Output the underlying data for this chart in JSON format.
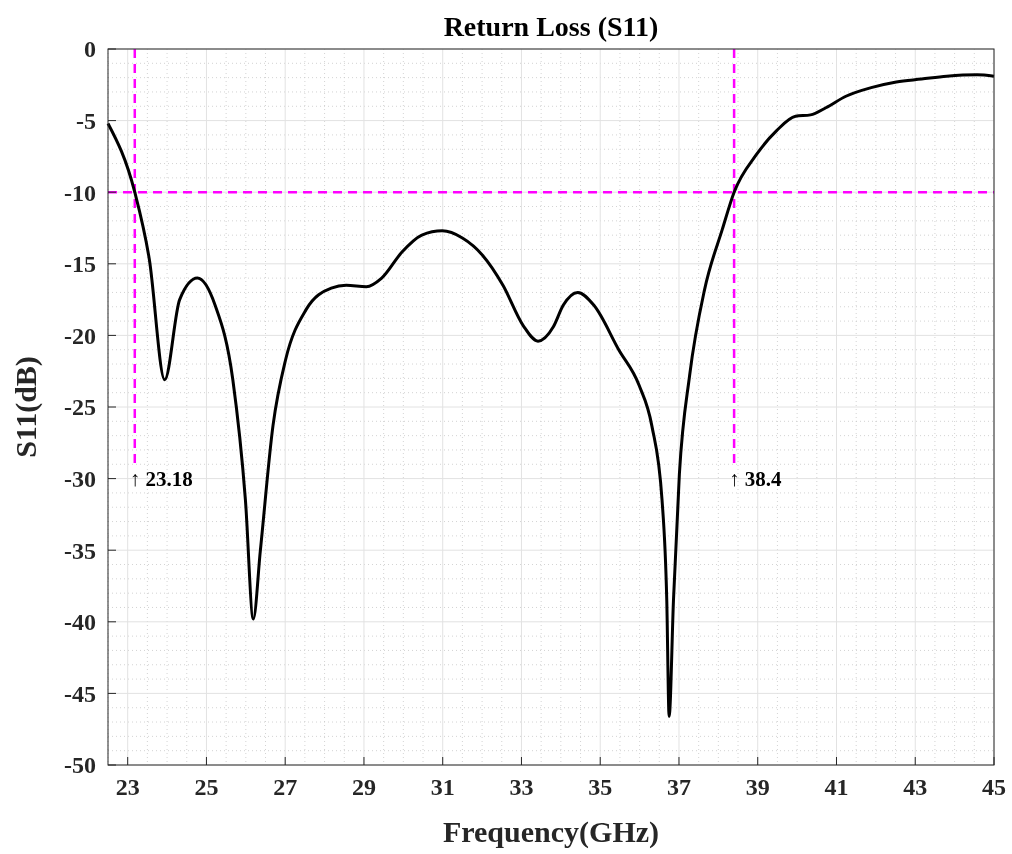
{
  "chart_data": {
    "type": "line",
    "title": "Return Loss (S11)",
    "xlabel": "Frequency(GHz)",
    "ylabel": "S11(dB)",
    "x": [
      22.5,
      23.18,
      23.55,
      23.94,
      24.32,
      24.77,
      25.22,
      25.67,
      25.99,
      26.19,
      26.37,
      26.69,
      27.01,
      27.53,
      28.17,
      28.55,
      29.06,
      29.45,
      29.96,
      30.47,
      30.99,
      31.5,
      32.01,
      32.53,
      33.04,
      33.42,
      33.81,
      34.06,
      34.43,
      34.84,
      35.47,
      35.99,
      36.31,
      36.57,
      36.69,
      36.75,
      36.86,
      37.01,
      37.27,
      37.65,
      38.1,
      38.4,
      38.96,
      39.48,
      39.96,
      40.34,
      40.73,
      41.24,
      41.88,
      42.52,
      43.16,
      43.8,
      44.57,
      45
    ],
    "series": [
      {
        "color": "#000000",
        "values": [
          -5.2,
          -10,
          -14.7,
          -23.1,
          -17.5,
          -16,
          -17.9,
          -23.1,
          -31.5,
          -39.8,
          -35,
          -26.3,
          -21.7,
          -18.2,
          -16.7,
          -16.5,
          -16.6,
          -16,
          -14.2,
          -13,
          -12.7,
          -13.2,
          -14.4,
          -16.5,
          -19.3,
          -20.4,
          -19.4,
          -17.9,
          -17,
          -17.9,
          -21,
          -23.5,
          -26.3,
          -31.5,
          -38.5,
          -46.6,
          -38.5,
          -29.7,
          -22.8,
          -16.8,
          -12.6,
          -10,
          -7.4,
          -5.7,
          -4.7,
          -4.6,
          -4.1,
          -3.3,
          -2.7,
          -2.3,
          -2.1,
          -1.9,
          -1.8,
          -1.9
        ]
      }
    ],
    "xlim": [
      22.5,
      45
    ],
    "xticks": [
      23,
      25,
      27,
      29,
      31,
      33,
      35,
      37,
      39,
      41,
      43,
      45
    ],
    "ylim": [
      -50,
      0
    ],
    "yticks": [
      -50,
      -45,
      -40,
      -35,
      -30,
      -25,
      -20,
      -15,
      -10,
      -5,
      0
    ],
    "grid": true,
    "line_style": "solid",
    "marker": "none",
    "ref_lines": [
      {
        "axis": "y",
        "value": -10,
        "color": "#ff00ff",
        "line_style": "dashed"
      },
      {
        "axis": "x",
        "value": 23.18,
        "color": "#ff00ff",
        "line_style": "dashed"
      },
      {
        "axis": "x",
        "value": 38.4,
        "color": "#ff00ff",
        "line_style": "dashed"
      }
    ],
    "annotations": [
      "↑ 23.18",
      "↑ 38.4"
    ]
  }
}
